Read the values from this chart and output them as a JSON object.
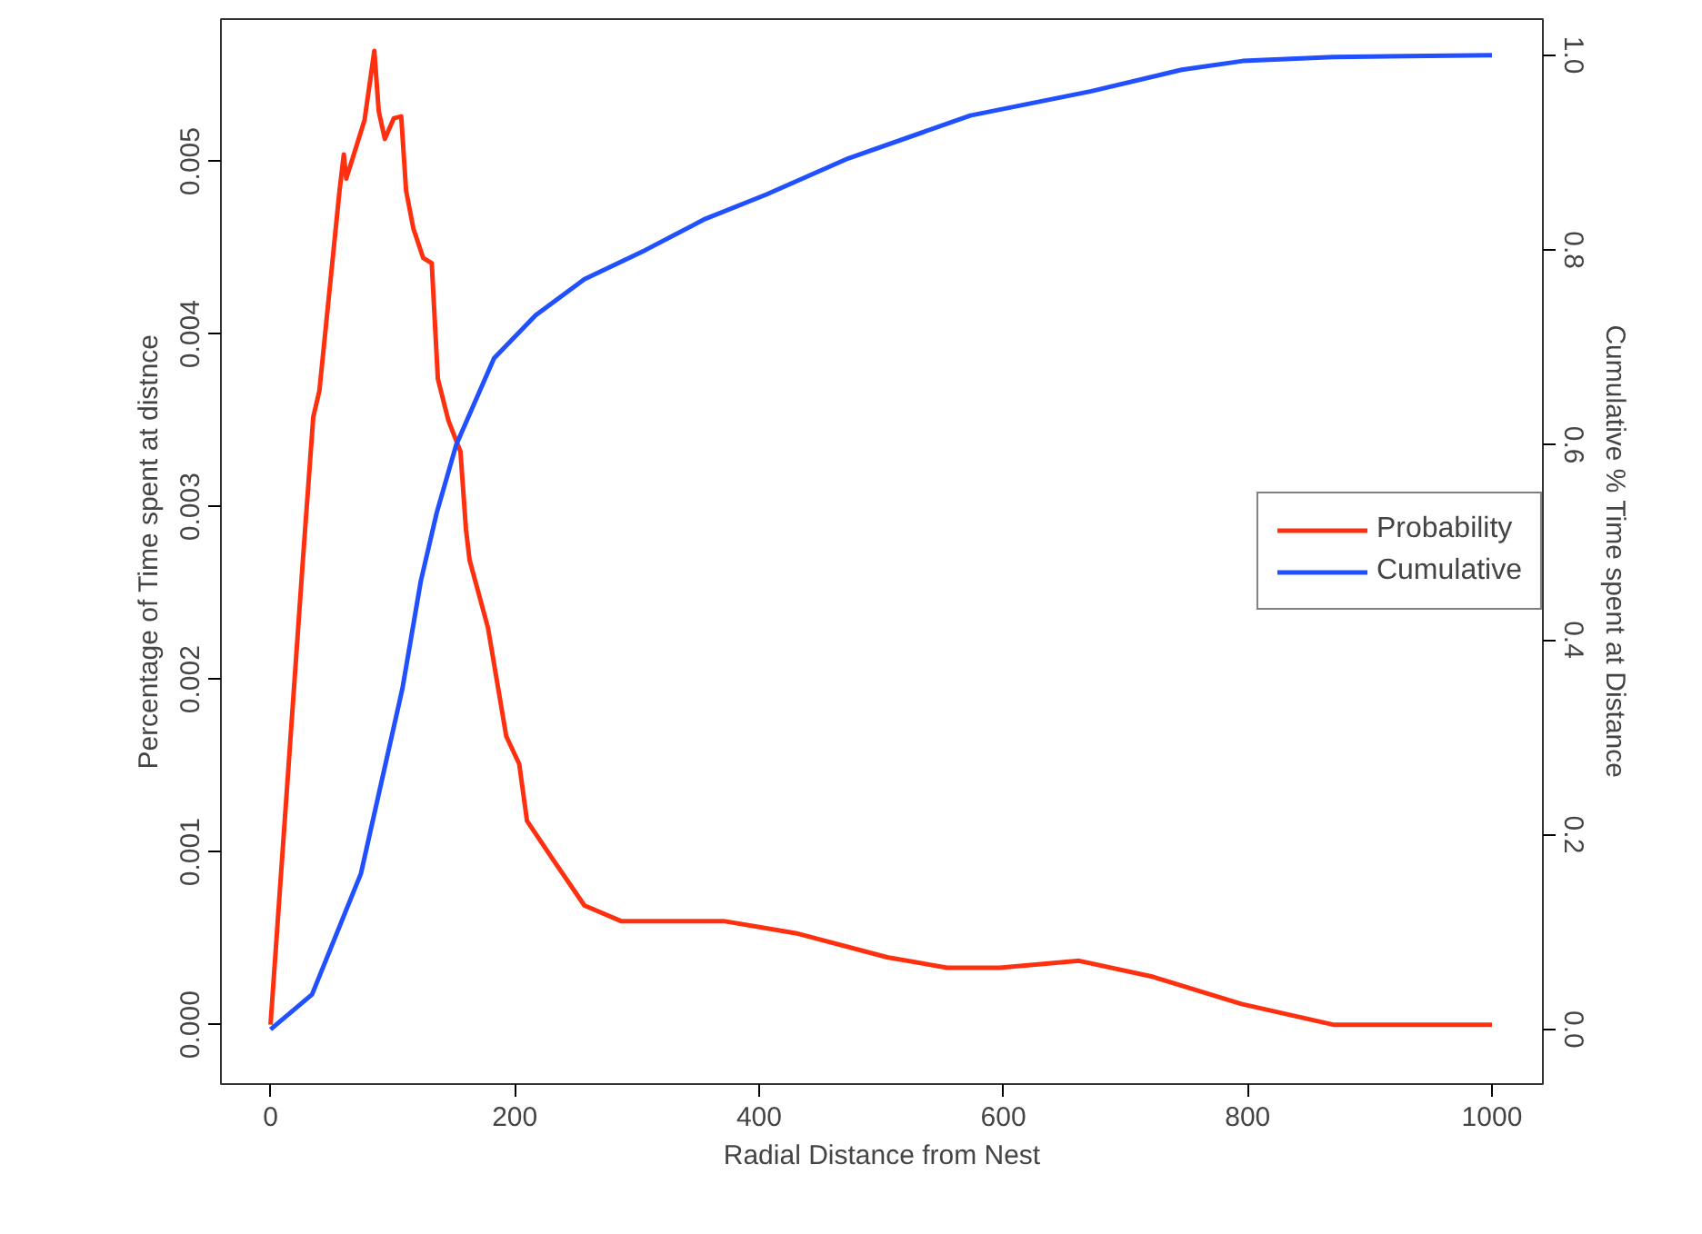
{
  "chart_data": {
    "type": "line",
    "xlabel": "Radial Distance from Nest",
    "ylabel": "Percentage of Time spent at distnce",
    "y2label": "Cumulative % Time spent at Distance",
    "xlim": [
      -40.6,
      1041.7
    ],
    "xticks": [
      0,
      200,
      400,
      600,
      800,
      1000
    ],
    "ylim": [
      -0.000344,
      0.005824
    ],
    "yticks": [
      {
        "value": 0,
        "label": "0.000"
      },
      {
        "value": 0.001,
        "label": "0.001"
      },
      {
        "value": 0.002,
        "label": "0.002"
      },
      {
        "value": 0.003,
        "label": "0.003"
      },
      {
        "value": 0.004,
        "label": "0.004"
      },
      {
        "value": 0.005,
        "label": "0.005"
      }
    ],
    "y2lim": [
      -0.056,
      1.037
    ],
    "y2ticks": [
      {
        "value": 0,
        "label": "0.0"
      },
      {
        "value": 0.2,
        "label": "0.2"
      },
      {
        "value": 0.4,
        "label": "0.4"
      },
      {
        "value": 0.6,
        "label": "0.6"
      },
      {
        "value": 0.8,
        "label": "0.8"
      },
      {
        "value": 1,
        "label": "1.0"
      }
    ],
    "grid": false,
    "legend": "right",
    "series": [
      {
        "name": "Probability",
        "color": "#ff3010",
        "x": [
          0,
          26.7,
          35,
          40,
          56.5,
          60,
          62,
          70,
          77,
          85,
          88.6,
          93.6,
          101,
          107,
          111,
          117,
          125,
          132,
          137,
          145.6,
          155.5,
          160,
          163,
          178,
          193,
          203.6,
          210,
          230,
          257,
          287,
          371,
          430,
          505,
          554,
          597,
          662,
          721,
          795,
          870,
          1000
        ],
        "values": [
          0,
          0.00271,
          0.00352,
          0.00367,
          0.00483,
          0.00504,
          0.0049,
          0.00508,
          0.00524,
          0.00564,
          0.00529,
          0.00513,
          0.00525,
          0.00526,
          0.00483,
          0.00461,
          0.00444,
          0.00441,
          0.00374,
          0.0035,
          0.00332,
          0.00287,
          0.00269,
          0.0023,
          0.00167,
          0.00151,
          0.00118,
          0.00097,
          0.00069,
          0.0006,
          0.0006,
          0.00053,
          0.00039,
          0.00033,
          0.00033,
          0.00037,
          0.00028,
          0.00012,
          0,
          0
        ]
      },
      {
        "name": "Cumulative",
        "color": "#2050ff",
        "axis": "y2",
        "x": [
          0,
          34,
          74,
          108,
          123,
          136,
          152,
          183,
          217,
          257,
          307,
          356,
          406,
          473,
          573,
          672,
          746,
          796,
          870,
          1000
        ],
        "values": [
          0,
          0.036,
          0.16,
          0.35,
          0.46,
          0.53,
          0.6,
          0.689,
          0.733,
          0.77,
          0.8,
          0.832,
          0.857,
          0.894,
          0.938,
          0.963,
          0.985,
          0.994,
          0.998,
          1.0
        ]
      }
    ]
  }
}
